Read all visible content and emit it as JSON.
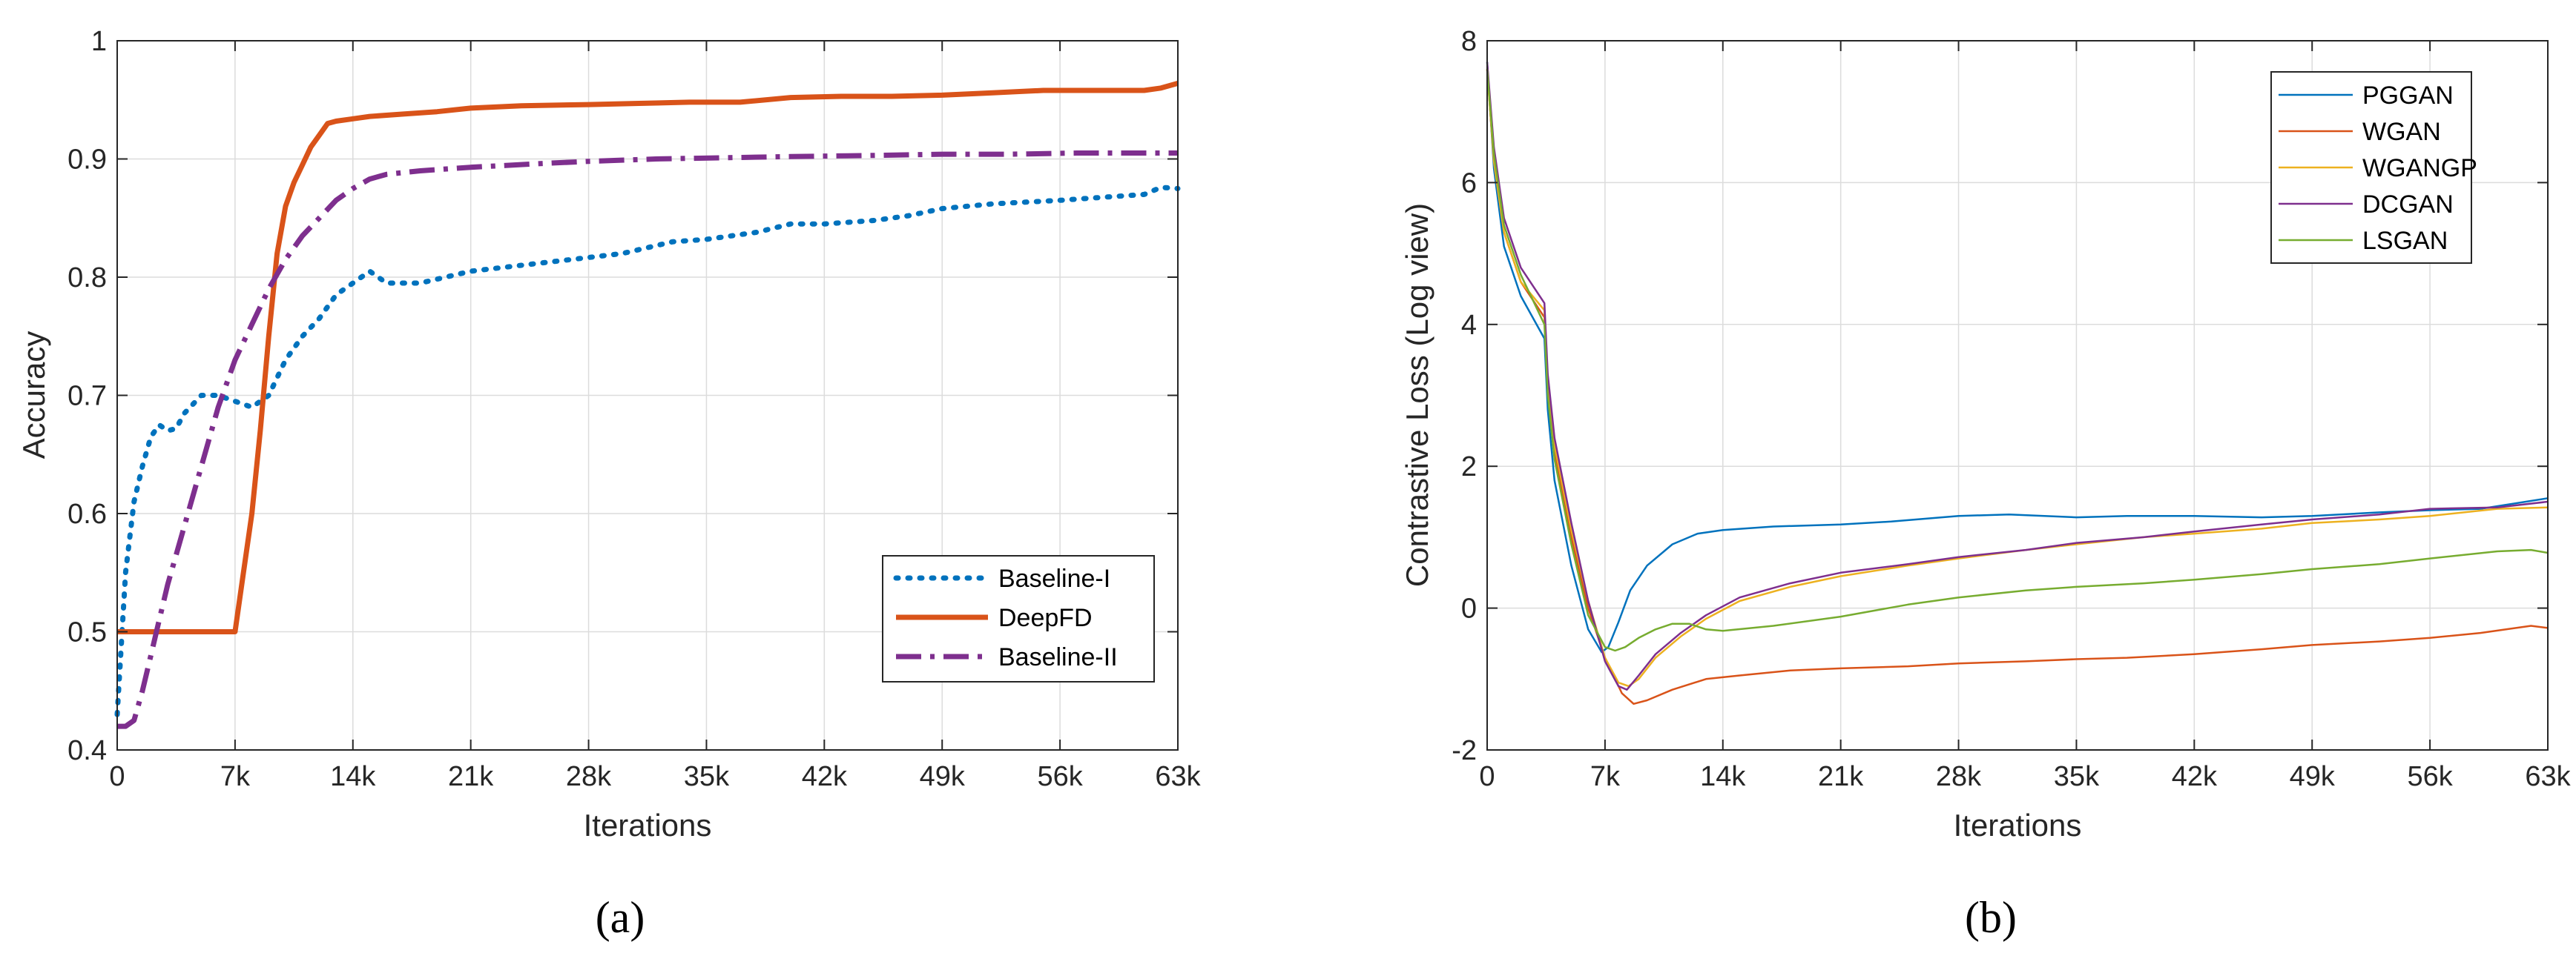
{
  "chart_data": [
    {
      "type": "line",
      "panel_label": "(a)",
      "xlabel": "Iterations",
      "ylabel": "Accuracy",
      "xlim": [
        0,
        63000
      ],
      "ylim": [
        0.4,
        1.0
      ],
      "x_ticks": [
        0,
        7000,
        14000,
        21000,
        28000,
        35000,
        42000,
        49000,
        56000,
        63000
      ],
      "x_tick_labels": [
        "0",
        "7k",
        "14k",
        "21k",
        "28k",
        "35k",
        "42k",
        "49k",
        "56k",
        "63k"
      ],
      "y_ticks": [
        0.4,
        0.5,
        0.6,
        0.7,
        0.8,
        0.9,
        1.0
      ],
      "y_tick_labels": [
        "0.4",
        "0.5",
        "0.6",
        "0.7",
        "0.8",
        "0.9",
        "1"
      ],
      "grid": true,
      "legend_position": "bottom-right",
      "series": [
        {
          "name": "Baseline-I",
          "color": "#0072BD",
          "style": "dotted",
          "x": [
            0,
            500,
            1000,
            1500,
            2000,
            2500,
            3000,
            3500,
            4000,
            5000,
            6000,
            7000,
            8000,
            9000,
            10000,
            11000,
            12000,
            13000,
            14000,
            15000,
            16000,
            18000,
            21000,
            24000,
            27000,
            30000,
            33000,
            35000,
            38000,
            40000,
            42000,
            45000,
            47000,
            49000,
            52000,
            56000,
            59000,
            61000,
            62000,
            63000
          ],
          "y": [
            0.43,
            0.55,
            0.61,
            0.64,
            0.665,
            0.675,
            0.67,
            0.672,
            0.685,
            0.7,
            0.7,
            0.695,
            0.69,
            0.7,
            0.73,
            0.75,
            0.765,
            0.785,
            0.795,
            0.805,
            0.795,
            0.795,
            0.805,
            0.81,
            0.815,
            0.82,
            0.83,
            0.832,
            0.838,
            0.845,
            0.845,
            0.848,
            0.852,
            0.858,
            0.862,
            0.865,
            0.868,
            0.87,
            0.876,
            0.875
          ]
        },
        {
          "name": "DeepFD",
          "color": "#D95319",
          "style": "solid",
          "x": [
            0,
            3000,
            6000,
            7000,
            7500,
            8000,
            8500,
            9000,
            9500,
            10000,
            10500,
            11000,
            11500,
            12000,
            12500,
            13000,
            14000,
            15000,
            17000,
            19000,
            21000,
            24000,
            28000,
            31000,
            34000,
            37000,
            40000,
            43000,
            46000,
            49000,
            52000,
            55000,
            58000,
            61000,
            62000,
            63000
          ],
          "y": [
            0.5,
            0.5,
            0.5,
            0.5,
            0.55,
            0.6,
            0.67,
            0.75,
            0.82,
            0.86,
            0.88,
            0.895,
            0.91,
            0.92,
            0.93,
            0.932,
            0.934,
            0.936,
            0.938,
            0.94,
            0.943,
            0.945,
            0.946,
            0.947,
            0.948,
            0.948,
            0.952,
            0.953,
            0.953,
            0.954,
            0.956,
            0.958,
            0.958,
            0.958,
            0.96,
            0.964
          ]
        },
        {
          "name": "Baseline-II",
          "color": "#7E2F8E",
          "style": "dashdot",
          "x": [
            0,
            500,
            1000,
            1500,
            2000,
            2500,
            3000,
            4000,
            5000,
            6000,
            7000,
            8000,
            9000,
            10000,
            11000,
            12000,
            13000,
            14000,
            15000,
            16000,
            18000,
            21000,
            25000,
            28000,
            32000,
            36000,
            40000,
            45000,
            49000,
            53000,
            57000,
            63000
          ],
          "y": [
            0.42,
            0.42,
            0.425,
            0.45,
            0.48,
            0.51,
            0.54,
            0.59,
            0.64,
            0.69,
            0.73,
            0.76,
            0.79,
            0.815,
            0.835,
            0.85,
            0.865,
            0.875,
            0.883,
            0.887,
            0.89,
            0.893,
            0.896,
            0.898,
            0.9,
            0.901,
            0.902,
            0.903,
            0.904,
            0.904,
            0.905,
            0.905
          ]
        }
      ]
    },
    {
      "type": "line",
      "panel_label": "(b)",
      "xlabel": "Iterations",
      "ylabel": "Contrastive Loss (Log view)",
      "xlim": [
        0,
        63000
      ],
      "ylim": [
        -2,
        8
      ],
      "x_ticks": [
        0,
        7000,
        14000,
        21000,
        28000,
        35000,
        42000,
        49000,
        56000,
        63000
      ],
      "x_tick_labels": [
        "0",
        "7k",
        "14k",
        "21k",
        "28k",
        "35k",
        "42k",
        "49k",
        "56k",
        "63k"
      ],
      "y_ticks": [
        -2,
        0,
        2,
        4,
        6,
        8
      ],
      "y_tick_labels": [
        "-2",
        "0",
        "2",
        "4",
        "6",
        "8"
      ],
      "grid": true,
      "legend_position": "top-right",
      "series": [
        {
          "name": "PGGAN",
          "color": "#0072BD",
          "style": "solid",
          "x": [
            0,
            400,
            1000,
            2000,
            3400,
            3600,
            4000,
            5000,
            6000,
            6800,
            7200,
            7800,
            8500,
            9500,
            11000,
            12500,
            14000,
            17000,
            21000,
            24000,
            28000,
            31000,
            35000,
            38000,
            42000,
            46000,
            49000,
            53000,
            56000,
            59000,
            63000
          ],
          "y": [
            7.7,
            6.2,
            5.1,
            4.4,
            3.8,
            2.8,
            1.8,
            0.6,
            -0.3,
            -0.62,
            -0.55,
            -0.2,
            0.25,
            0.6,
            0.9,
            1.05,
            1.1,
            1.15,
            1.18,
            1.22,
            1.3,
            1.32,
            1.28,
            1.3,
            1.3,
            1.28,
            1.3,
            1.35,
            1.38,
            1.4,
            1.55
          ]
        },
        {
          "name": "WGAN",
          "color": "#D95319",
          "style": "solid",
          "x": [
            0,
            400,
            1000,
            2000,
            3400,
            3600,
            4000,
            5000,
            6000,
            7000,
            8000,
            8700,
            9500,
            11000,
            13000,
            15000,
            18000,
            21000,
            25000,
            28000,
            32000,
            35000,
            38000,
            42000,
            46000,
            49000,
            53000,
            56000,
            59000,
            62000,
            63000
          ],
          "y": [
            7.6,
            6.3,
            5.3,
            4.6,
            4.1,
            3.1,
            2.2,
            1.0,
            0.0,
            -0.7,
            -1.2,
            -1.35,
            -1.3,
            -1.15,
            -1.0,
            -0.95,
            -0.88,
            -0.85,
            -0.82,
            -0.78,
            -0.75,
            -0.72,
            -0.7,
            -0.65,
            -0.58,
            -0.52,
            -0.47,
            -0.42,
            -0.35,
            -0.25,
            -0.28
          ]
        },
        {
          "name": "WGANGP",
          "color": "#EDB120",
          "style": "solid",
          "x": [
            0,
            400,
            1000,
            2000,
            3400,
            3600,
            4000,
            5000,
            6000,
            7000,
            7800,
            8400,
            9000,
            10000,
            11500,
            13000,
            15000,
            18000,
            21000,
            25000,
            28000,
            32000,
            35000,
            39000,
            42000,
            46000,
            49000,
            53000,
            56000,
            60000,
            63000
          ],
          "y": [
            7.6,
            6.3,
            5.3,
            4.6,
            4.2,
            3.2,
            2.3,
            1.1,
            0.1,
            -0.7,
            -1.05,
            -1.1,
            -1.0,
            -0.7,
            -0.4,
            -0.15,
            0.1,
            0.3,
            0.45,
            0.6,
            0.7,
            0.82,
            0.9,
            1.0,
            1.05,
            1.12,
            1.2,
            1.25,
            1.3,
            1.4,
            1.42
          ]
        },
        {
          "name": "DCGAN",
          "color": "#7E2F8E",
          "style": "solid",
          "x": [
            0,
            400,
            1000,
            2000,
            3400,
            3600,
            4000,
            5000,
            6000,
            7000,
            7800,
            8300,
            9000,
            10000,
            11500,
            13000,
            15000,
            18000,
            21000,
            25000,
            28000,
            32000,
            35000,
            39000,
            42000,
            46000,
            49000,
            53000,
            56000,
            60000,
            63000
          ],
          "y": [
            7.7,
            6.5,
            5.5,
            4.8,
            4.3,
            3.3,
            2.4,
            1.2,
            0.1,
            -0.75,
            -1.1,
            -1.15,
            -0.95,
            -0.65,
            -0.35,
            -0.1,
            0.15,
            0.35,
            0.5,
            0.62,
            0.72,
            0.82,
            0.92,
            1.0,
            1.08,
            1.18,
            1.25,
            1.32,
            1.4,
            1.42,
            1.5
          ]
        },
        {
          "name": "LSGAN",
          "color": "#77AC30",
          "style": "solid",
          "x": [
            0,
            400,
            1000,
            2000,
            3400,
            3600,
            4000,
            5000,
            6000,
            7000,
            7600,
            8200,
            9000,
            10000,
            11000,
            12000,
            13000,
            14000,
            17000,
            21000,
            25000,
            28000,
            32000,
            35000,
            39000,
            42000,
            46000,
            49000,
            53000,
            56000,
            60000,
            62000,
            63000
          ],
          "y": [
            7.6,
            6.4,
            5.4,
            4.7,
            4.0,
            3.0,
            2.1,
            0.9,
            -0.1,
            -0.55,
            -0.6,
            -0.55,
            -0.42,
            -0.3,
            -0.22,
            -0.22,
            -0.3,
            -0.32,
            -0.25,
            -0.12,
            0.05,
            0.15,
            0.25,
            0.3,
            0.35,
            0.4,
            0.48,
            0.55,
            0.62,
            0.7,
            0.8,
            0.82,
            0.78
          ]
        }
      ]
    }
  ]
}
